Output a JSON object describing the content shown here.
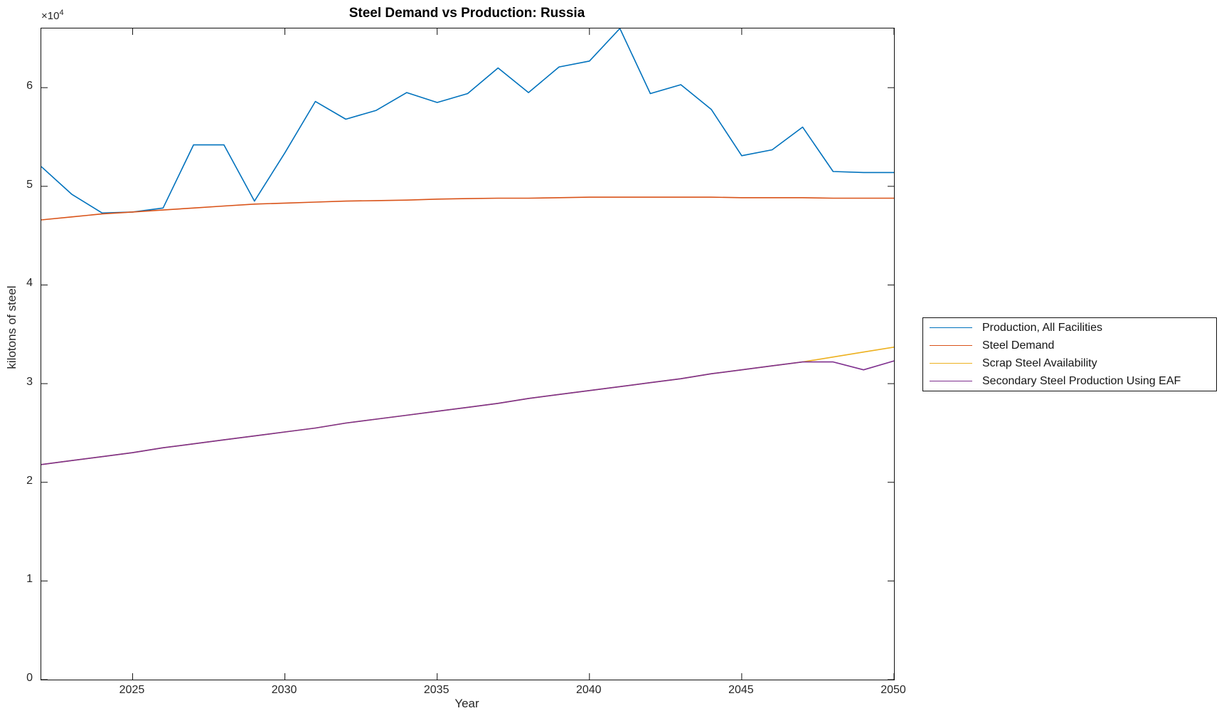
{
  "chart_data": {
    "type": "line",
    "title": "Steel Demand vs Production: Russia",
    "xlabel": "Year",
    "ylabel": "kilotons of steel",
    "y_exponent_base": "×10",
    "y_exponent_power": "4",
    "xlim": [
      2022,
      2050
    ],
    "ylim": [
      0,
      66000
    ],
    "x_ticks": [
      2025,
      2030,
      2035,
      2040,
      2045,
      2050
    ],
    "y_ticks": [
      0,
      10000,
      20000,
      30000,
      40000,
      50000,
      60000
    ],
    "y_tick_labels": [
      "0",
      "1",
      "2",
      "3",
      "4",
      "5",
      "6"
    ],
    "grid": false,
    "legend_position": "right-outside",
    "x": [
      2022,
      2023,
      2024,
      2025,
      2026,
      2027,
      2028,
      2029,
      2030,
      2031,
      2032,
      2033,
      2034,
      2035,
      2036,
      2037,
      2038,
      2039,
      2040,
      2041,
      2042,
      2043,
      2044,
      2045,
      2046,
      2047,
      2048,
      2049,
      2050
    ],
    "series": [
      {
        "name": "Production, All Facilities",
        "color": "#0072BD",
        "values": [
          52000,
          49200,
          47300,
          47400,
          47800,
          54200,
          54200,
          48500,
          53400,
          58600,
          56800,
          57700,
          59500,
          58500,
          59400,
          62000,
          59500,
          62100,
          62700,
          66000,
          59400,
          60300,
          57800,
          53100,
          53700,
          56000,
          51500,
          51400,
          51400
        ]
      },
      {
        "name": "Steel Demand",
        "color": "#D95319",
        "values": [
          46600,
          46900,
          47200,
          47400,
          47600,
          47800,
          48000,
          48200,
          48300,
          48400,
          48500,
          48550,
          48600,
          48700,
          48750,
          48800,
          48800,
          48850,
          48900,
          48900,
          48900,
          48900,
          48900,
          48850,
          48850,
          48850,
          48800,
          48800,
          48800
        ]
      },
      {
        "name": "Scrap Steel Availability",
        "color": "#EDB120",
        "values": [
          21800,
          22200,
          22600,
          23000,
          23500,
          23900,
          24300,
          24700,
          25100,
          25500,
          26000,
          26400,
          26800,
          27200,
          27600,
          28000,
          28500,
          28900,
          29300,
          29700,
          30100,
          30500,
          31000,
          31400,
          31800,
          32200,
          32700,
          33200,
          33700
        ]
      },
      {
        "name": "Secondary Steel Production Using EAF",
        "color": "#7E2F8E",
        "values": [
          21800,
          22200,
          22600,
          23000,
          23500,
          23900,
          24300,
          24700,
          25100,
          25500,
          26000,
          26400,
          26800,
          27200,
          27600,
          28000,
          28500,
          28900,
          29300,
          29700,
          30100,
          30500,
          31000,
          31400,
          31800,
          32200,
          32200,
          31400,
          32300
        ]
      }
    ]
  }
}
